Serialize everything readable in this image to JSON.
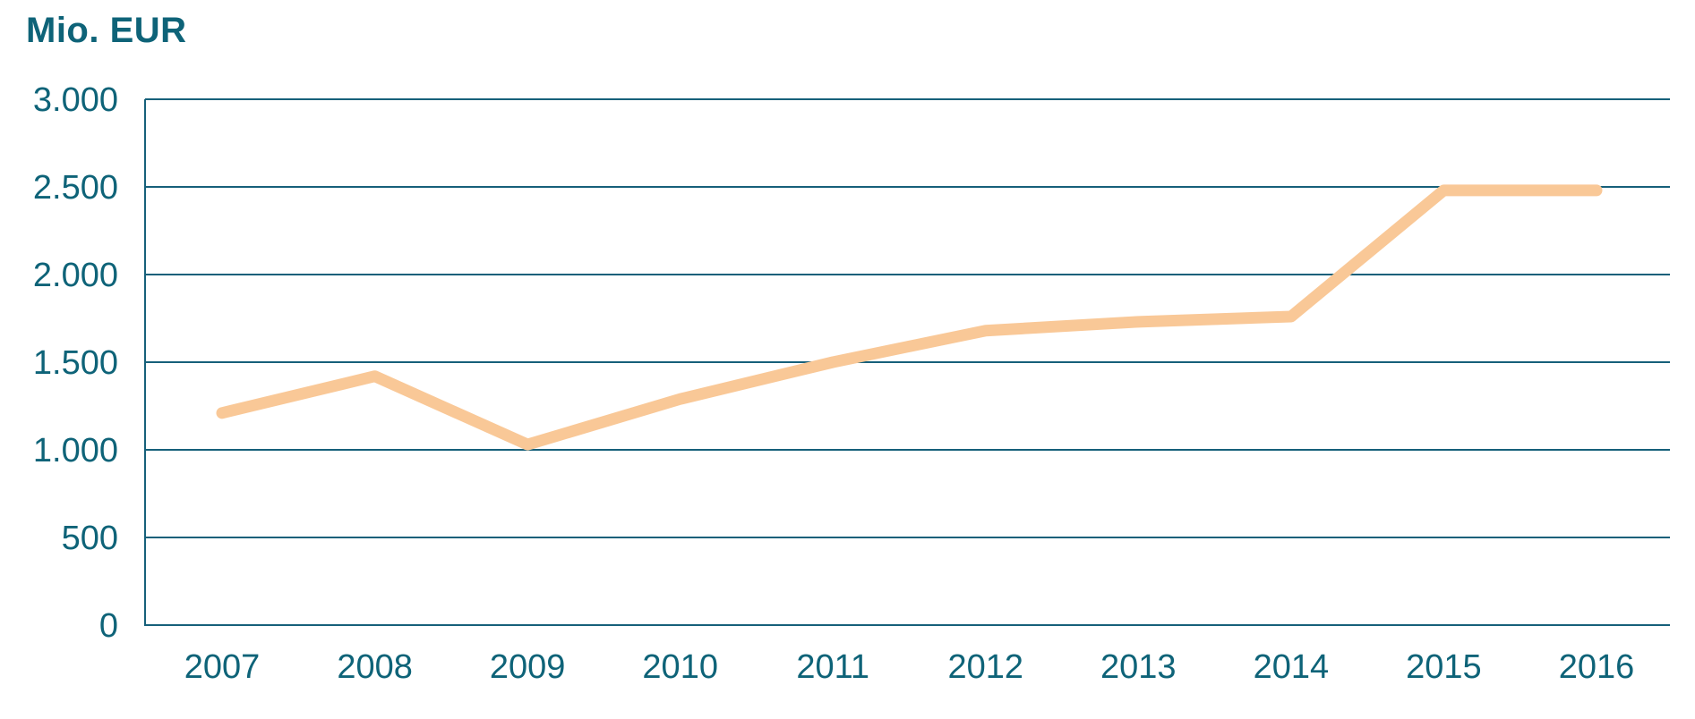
{
  "chart_data": {
    "type": "line",
    "title": "Mio. EUR",
    "ylabel": "Mio. EUR",
    "xlabel": "",
    "categories": [
      "2007",
      "2008",
      "2009",
      "2010",
      "2011",
      "2012",
      "2013",
      "2014",
      "2015",
      "2016"
    ],
    "series": [
      {
        "name": "value-mio-eur",
        "values": [
          1210,
          1420,
          1030,
          1290,
          1500,
          1680,
          1730,
          1760,
          2480,
          2480
        ]
      }
    ],
    "ylim": [
      0,
      3000
    ],
    "yticks": {
      "values": [
        3000,
        2500,
        2000,
        1500,
        1000,
        500,
        0
      ],
      "labels": [
        "3.000",
        "2.500",
        "2.000",
        "1.500",
        "1.000",
        "500",
        "0"
      ]
    },
    "grid": true,
    "legend": "none",
    "colors": {
      "line": "#f9c897",
      "grid": "#16607a",
      "axis": "#16607a",
      "text": "#0e6378"
    }
  }
}
